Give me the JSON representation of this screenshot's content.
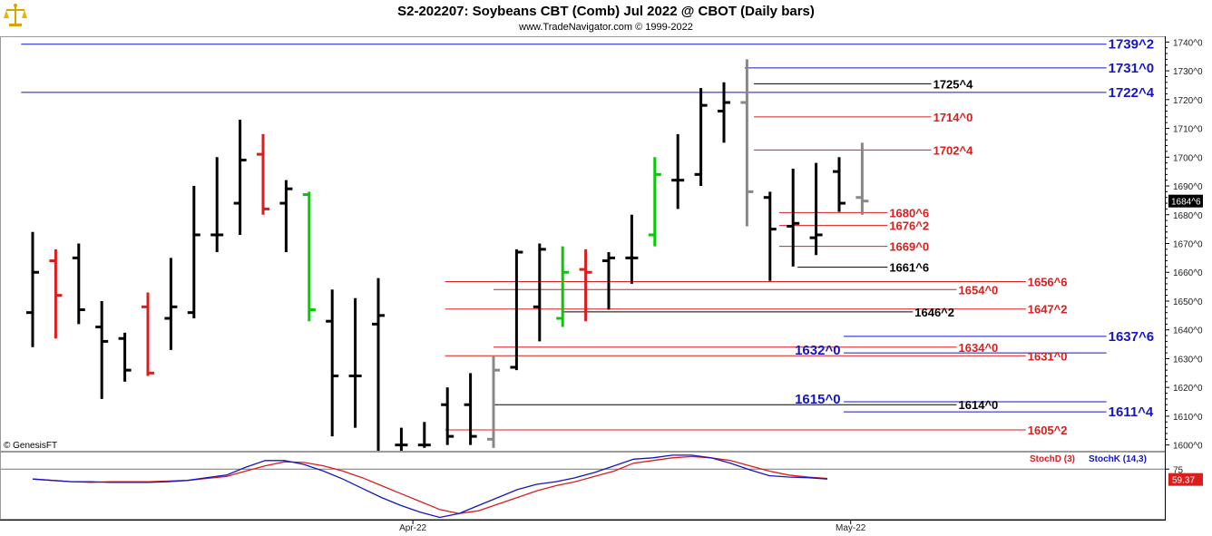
{
  "header": {
    "title": "S2-202207:  Soybeans CBT (Comb) Jul 2022 @ CBOT  (Daily bars)",
    "copyright": "www.TradeNavigator.com © 1999-2022",
    "watermark": "© GenesisFT",
    "logo_icon": "scales-of-justice-icon"
  },
  "chart_data": {
    "type": "ohlc",
    "price_ticks": [
      "1600^0",
      "1610^0",
      "1620^0",
      "1630^0",
      "1640^0",
      "1650^0",
      "1660^0",
      "1670^0",
      "1680^0",
      "1690^0",
      "1700^0",
      "1710^0",
      "1720^0",
      "1730^0",
      "1740^0"
    ],
    "price_tick_values": [
      1600,
      1610,
      1620,
      1630,
      1640,
      1650,
      1660,
      1670,
      1680,
      1690,
      1700,
      1710,
      1720,
      1730,
      1740
    ],
    "ylim": [
      1598,
      1742
    ],
    "last_price": "1684^6",
    "last_price_value": 1684.75,
    "x_labels": [
      {
        "label": "Apr-22",
        "bar": 16.5
      },
      {
        "label": "May-22",
        "bar": 35.5
      }
    ],
    "bars": [
      {
        "o": 1646,
        "h": 1674,
        "l": 1634,
        "c": 1660,
        "color": "#000000"
      },
      {
        "o": 1664,
        "h": 1668,
        "l": 1637,
        "c": 1652,
        "color": "#dd1c1c"
      },
      {
        "o": 1665,
        "h": 1670,
        "l": 1642,
        "c": 1647,
        "color": "#000000"
      },
      {
        "o": 1641,
        "h": 1650,
        "l": 1616,
        "c": 1636,
        "color": "#000000"
      },
      {
        "o": 1637,
        "h": 1639,
        "l": 1622,
        "c": 1626,
        "color": "#000000"
      },
      {
        "o": 1648,
        "h": 1653,
        "l": 1624,
        "c": 1625,
        "color": "#dd1c1c"
      },
      {
        "o": 1644,
        "h": 1665,
        "l": 1633,
        "c": 1648,
        "color": "#000000"
      },
      {
        "o": 1646,
        "h": 1690,
        "l": 1644,
        "c": 1673,
        "color": "#000000"
      },
      {
        "o": 1673,
        "h": 1700,
        "l": 1667,
        "c": 1673,
        "color": "#000000"
      },
      {
        "o": 1684,
        "h": 1713,
        "l": 1673,
        "c": 1699,
        "color": "#000000"
      },
      {
        "o": 1701,
        "h": 1708,
        "l": 1680,
        "c": 1682,
        "color": "#dd1c1c"
      },
      {
        "o": 1684,
        "h": 1692,
        "l": 1667,
        "c": 1689,
        "color": "#000000"
      },
      {
        "o": 1687,
        "h": 1688,
        "l": 1643,
        "c": 1647,
        "color": "#00cc00"
      },
      {
        "o": 1643,
        "h": 1654,
        "l": 1603,
        "c": 1624,
        "color": "#000000"
      },
      {
        "o": 1624,
        "h": 1651,
        "l": 1606,
        "c": 1624,
        "color": "#000000"
      },
      {
        "o": 1642,
        "h": 1658,
        "l": 1598,
        "c": 1645,
        "color": "#000000"
      },
      {
        "o": 1600,
        "h": 1606,
        "l": 1598,
        "c": 1600,
        "color": "#000000"
      },
      {
        "o": 1600,
        "h": 1608,
        "l": 1599,
        "c": 1600,
        "color": "#000000"
      },
      {
        "o": 1614,
        "h": 1620,
        "l": 1600,
        "c": 1603,
        "color": "#000000"
      },
      {
        "o": 1614,
        "h": 1625,
        "l": 1600,
        "c": 1603,
        "color": "#000000"
      },
      {
        "o": 1602,
        "h": 1631,
        "l": 1599,
        "c": 1626,
        "color": "#888888"
      },
      {
        "o": 1627,
        "h": 1668,
        "l": 1626,
        "c": 1667,
        "color": "#000000"
      },
      {
        "o": 1648,
        "h": 1670,
        "l": 1636,
        "c": 1668,
        "color": "#000000"
      },
      {
        "o": 1644,
        "h": 1669,
        "l": 1641,
        "c": 1660,
        "color": "#00cc00"
      },
      {
        "o": 1661,
        "h": 1668,
        "l": 1643,
        "c": 1660,
        "color": "#dd1c1c"
      },
      {
        "o": 1664,
        "h": 1667,
        "l": 1647,
        "c": 1665,
        "color": "#000000"
      },
      {
        "o": 1665,
        "h": 1680,
        "l": 1656,
        "c": 1665,
        "color": "#000000"
      },
      {
        "o": 1673,
        "h": 1700,
        "l": 1669,
        "c": 1694,
        "color": "#00cc00"
      },
      {
        "o": 1692,
        "h": 1708,
        "l": 1682,
        "c": 1692,
        "color": "#000000"
      },
      {
        "o": 1694,
        "h": 1724,
        "l": 1690,
        "c": 1718,
        "color": "#000000"
      },
      {
        "o": 1716,
        "h": 1726,
        "l": 1705,
        "c": 1719,
        "color": "#000000"
      },
      {
        "o": 1719,
        "h": 1734,
        "l": 1676,
        "c": 1688,
        "color": "#888888"
      },
      {
        "o": 1686,
        "h": 1688,
        "l": 1657,
        "c": 1675,
        "color": "#000000"
      },
      {
        "o": 1676,
        "h": 1696,
        "l": 1662,
        "c": 1677,
        "color": "#000000"
      },
      {
        "o": 1672,
        "h": 1698,
        "l": 1666,
        "c": 1673,
        "color": "#000000"
      },
      {
        "o": 1695,
        "h": 1700,
        "l": 1681,
        "c": 1684,
        "color": "#000000"
      },
      {
        "o": 1686,
        "h": 1705,
        "l": 1680,
        "c": 1684.75,
        "color": "#888888"
      }
    ],
    "levels": [
      {
        "label": "1739^2",
        "value": 1739.25,
        "color": "#1515c8",
        "x1b": -0.5,
        "x2b": 46.6,
        "size": 15
      },
      {
        "label": "1731^0",
        "value": 1731,
        "color": "#1515c8",
        "x1b": 30.9,
        "x2b": 46.6,
        "size": 15
      },
      {
        "label": "1725^4",
        "value": 1725.5,
        "color": "#000000",
        "x1b": 31.3,
        "x2b": 39,
        "size": 13
      },
      {
        "label": "1722^4",
        "value": 1722.5,
        "color": "#1515c8",
        "x1b": -0.5,
        "x2b": 46.6,
        "size": 15
      },
      {
        "label": "1714^0",
        "value": 1714,
        "color": "#dd1c1c",
        "x1b": 31.3,
        "x2b": 39,
        "size": 13
      },
      {
        "label": "1702^4",
        "value": 1702.5,
        "color": "#dd1c1c",
        "x1b": 31.3,
        "x2b": 39,
        "size": 13
      },
      {
        "label": "1680^6",
        "value": 1680.75,
        "color": "#dd1c1c",
        "x1b": 32.4,
        "x2b": 37.1,
        "size": 13
      },
      {
        "label": "1676^2",
        "value": 1676.25,
        "color": "#dd1c1c",
        "x1b": 32.4,
        "x2b": 37.1,
        "size": 13
      },
      {
        "label": "1669^0",
        "value": 1669,
        "color": "#dd1c1c",
        "x1b": 32.4,
        "x2b": 37.1,
        "size": 13
      },
      {
        "label": "1661^6",
        "value": 1661.75,
        "color": "#000000",
        "x1b": 33.2,
        "x2b": 37.1,
        "size": 13
      },
      {
        "label": "1656^6",
        "value": 1656.75,
        "color": "#dd1c1c",
        "x1b": 17.9,
        "x2b": 43.1,
        "size": 13
      },
      {
        "label": "1654^0",
        "value": 1654,
        "color": "#dd1c1c",
        "x1b": 20,
        "x2b": 40.1,
        "size": 13
      },
      {
        "label": "1647^2",
        "value": 1647.25,
        "color": "#dd1c1c",
        "x1b": 17.9,
        "x2b": 43.1,
        "size": 13
      },
      {
        "label": "1646^2",
        "value": 1646.25,
        "color": "#000000",
        "x1b": 23,
        "x2b": 38.2,
        "size": 13
      },
      {
        "label": "1637^6",
        "value": 1637.75,
        "color": "#1515c8",
        "x1b": 35.2,
        "x2b": 46.6,
        "size": 15
      },
      {
        "label": "1634^0",
        "value": 1634,
        "color": "#dd1c1c",
        "x1b": 20,
        "x2b": 40.1,
        "size": 13
      },
      {
        "label": "1632^0",
        "value": 1632,
        "color": "#1515c8",
        "x1b": 35.2,
        "x2b": 46.6,
        "size": 15,
        "labelLeft": true
      },
      {
        "label": "1631^0",
        "value": 1631,
        "color": "#dd1c1c",
        "x1b": 17.9,
        "x2b": 43.1,
        "size": 13
      },
      {
        "label": "1615^0",
        "value": 1615,
        "color": "#1515c8",
        "x1b": 35.2,
        "x2b": 46.6,
        "size": 15,
        "labelLeft": true
      },
      {
        "label": "1614^0",
        "value": 1614,
        "color": "#000000",
        "x1b": 20,
        "x2b": 40.1,
        "size": 13
      },
      {
        "label": "1611^4",
        "value": 1611.5,
        "color": "#1515c8",
        "x1b": 35.2,
        "x2b": 46.6,
        "size": 15
      },
      {
        "label": "1605^2",
        "value": 1605.25,
        "color": "#dd1c1c",
        "x1b": 17.9,
        "x2b": 43.1,
        "size": 13
      }
    ],
    "indicator": {
      "stochd_label": "StochD (3)",
      "stochk_label": "StochK (14,3)",
      "stochd_color": "#dd1c1c",
      "stochk_color": "#1515c8",
      "level_label": "75",
      "level_value": 75,
      "last_value_label": "59.37",
      "last_value": 59.37,
      "ylim": [
        0,
        100
      ],
      "stochk": [
        60,
        58,
        56,
        56,
        55,
        55,
        55,
        56,
        58,
        62,
        66,
        78,
        88,
        88,
        82,
        72,
        60,
        46,
        32,
        20,
        10,
        2,
        8,
        20,
        32,
        44,
        52,
        56,
        62,
        70,
        80,
        90,
        92,
        96,
        96,
        92,
        84,
        74,
        65,
        63,
        62,
        60
      ],
      "stochd": [
        60,
        58,
        56,
        55,
        56,
        56,
        56,
        57,
        58,
        61,
        64,
        72,
        80,
        86,
        85,
        80,
        72,
        62,
        50,
        38,
        26,
        14,
        8,
        12,
        22,
        32,
        42,
        50,
        56,
        64,
        72,
        84,
        88,
        92,
        94,
        92,
        88,
        80,
        72,
        66,
        63,
        61
      ]
    }
  }
}
